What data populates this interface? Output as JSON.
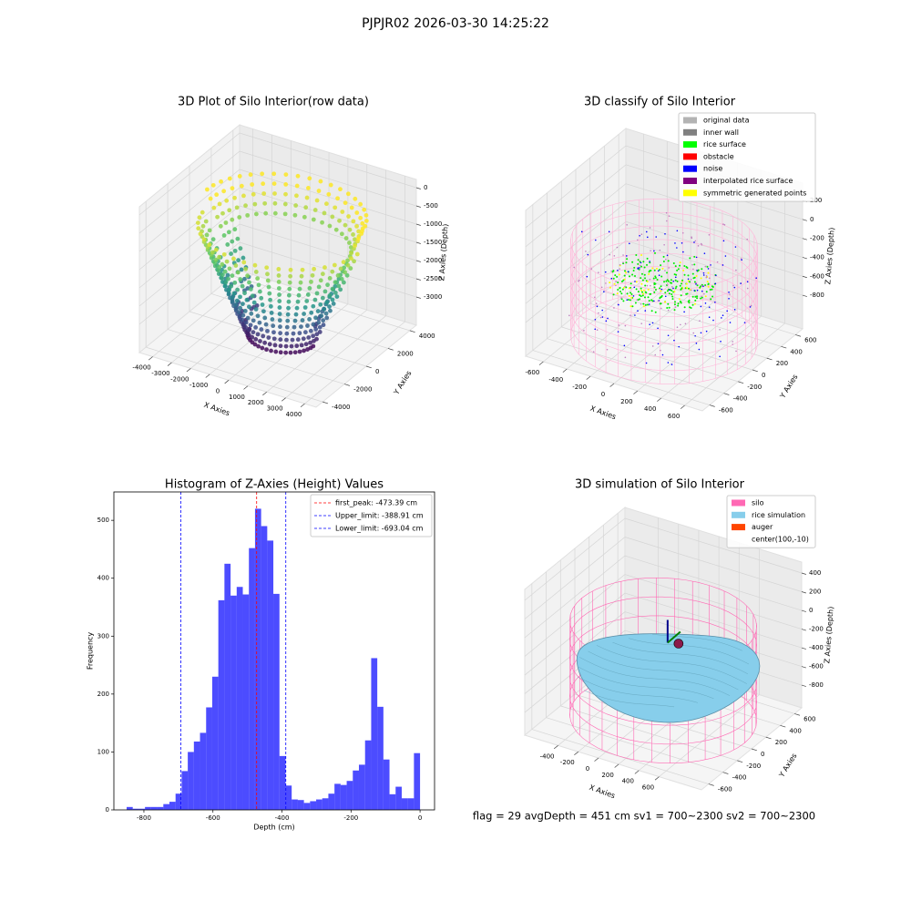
{
  "suptitle": "PJPJR02 2026-03-30 14:25:22",
  "footer": "flag = 29  avgDepth = 451 cm  sv1 = 700~2300  sv2 = 700~2300",
  "chart_data": [
    {
      "type": "scatter3d",
      "title": "3D Plot of Silo Interior(row data)",
      "xlabel": "X Axies",
      "ylabel": "Y Axies",
      "zlabel": "Z Axies (Depth)",
      "xlim": [
        -4700,
        4600
      ],
      "ylim": [
        -4600,
        4600
      ],
      "zlim": [
        -3775,
        225
      ],
      "xticks": [
        -4000,
        -3000,
        -2000,
        -1000,
        0,
        1000,
        2000,
        3000,
        4000
      ],
      "yticks": [
        -4000,
        -2000,
        0,
        2000,
        4000
      ],
      "zticks": [
        0,
        -500,
        -1000,
        -1500,
        -2000,
        -2500,
        -3000
      ]
    },
    {
      "type": "classify3d",
      "title": "3D classify of Silo Interior",
      "xlabel": "X Axies",
      "ylabel": "Y Axies",
      "zlabel": "Z Axies (Depth)",
      "xlim": [
        -750,
        750
      ],
      "ylim": [
        -700,
        700
      ],
      "zlim": [
        -1155,
        383
      ],
      "xticks": [
        -600,
        -400,
        -200,
        0,
        200,
        400,
        600
      ],
      "yticks": [
        -600,
        -400,
        -200,
        0,
        200,
        400,
        600
      ],
      "zticks": [
        -800,
        -600,
        -400,
        -200,
        0,
        200
      ],
      "legend": "upper right",
      "legend_entries": [
        {
          "name": "original data",
          "color": "#b3b3b3"
        },
        {
          "name": "inner wall",
          "color": "#808080"
        },
        {
          "name": "rice surface",
          "color": "#00ff00"
        },
        {
          "name": "obstacle",
          "color": "#ff0000"
        },
        {
          "name": "noise",
          "color": "#0000ff"
        },
        {
          "name": "interpolated rice surface",
          "color": "#800080"
        },
        {
          "name": "symmetric generated points",
          "color": "#ffff00"
        }
      ]
    },
    {
      "type": "histogram",
      "title": "Histogram of Z-Axies (Height) Values",
      "xlabel": "Depth (cm)",
      "ylabel": "Frequency",
      "color": "#0000ff",
      "bins": [
        -850.0,
        -832.3,
        -814.6,
        -796.9,
        -779.2,
        -761.5,
        -743.7,
        -726.0,
        -708.3,
        -690.6,
        -672.9,
        -655.2,
        -637.5,
        -619.8,
        -602.1,
        -584.4,
        -566.7,
        -548.9,
        -531.2,
        -513.5,
        -495.8,
        -478.1,
        -460.4,
        -442.7,
        -425.0,
        -407.3,
        -389.6,
        -371.9,
        -354.1,
        -336.4,
        -318.7,
        -301.0,
        -283.3,
        -265.6,
        -247.9,
        -230.2,
        -212.5,
        -194.8,
        -177.1,
        -159.3,
        -141.6,
        -123.9,
        -106.2,
        -88.5,
        -70.8,
        -53.1,
        -35.4,
        -17.7,
        0.0
      ],
      "values": [
        5,
        2,
        2,
        5,
        5,
        5,
        10,
        14,
        28,
        67,
        100,
        118,
        133,
        177,
        230,
        362,
        425,
        370,
        385,
        372,
        452,
        520,
        490,
        465,
        373,
        93,
        42,
        18,
        17,
        12,
        15,
        18,
        20,
        28,
        45,
        43,
        50,
        68,
        78,
        120,
        262,
        178,
        87,
        27,
        40,
        20,
        20,
        98
      ],
      "xlim": [
        -887,
        42
      ],
      "ylim": [
        0,
        549
      ],
      "xticks": [
        -800,
        -600,
        -400,
        -200,
        0
      ],
      "yticks": [
        0,
        100,
        200,
        300,
        400,
        500
      ],
      "legend": "upper right",
      "lines": [
        {
          "name": "first_peak: -473.39 cm",
          "value": -473.39,
          "color": "#ff0000"
        },
        {
          "name": "Upper_limit: -388.91 cm",
          "value": -388.91,
          "color": "#0000ff"
        },
        {
          "name": "Lower_limit: -693.04 cm",
          "value": -693.04,
          "color": "#0000ff"
        }
      ]
    },
    {
      "type": "surface3d",
      "title": "3D simulation of Silo Interior",
      "xlabel": "X Axies",
      "ylabel": "Y Axies",
      "zlabel": "Z Axies (Depth)",
      "xlim": [
        -730,
        1020
      ],
      "ylim": [
        -700,
        700
      ],
      "zlim": [
        -1043,
        517
      ],
      "xticks": [
        -400,
        -200,
        0,
        200,
        400,
        600
      ],
      "yticks": [
        -600,
        -400,
        -200,
        0,
        200,
        400,
        600
      ],
      "zticks": [
        -800,
        -600,
        -400,
        -200,
        0,
        200,
        400
      ],
      "legend": "upper right",
      "legend_entries": [
        {
          "name": "silo",
          "color": "#ff69b4"
        },
        {
          "name": "rice simulation",
          "color": "#87ceeb"
        },
        {
          "name": "auger",
          "color": "#ff4500"
        },
        {
          "name": "center(100,-10)"
        }
      ]
    }
  ]
}
